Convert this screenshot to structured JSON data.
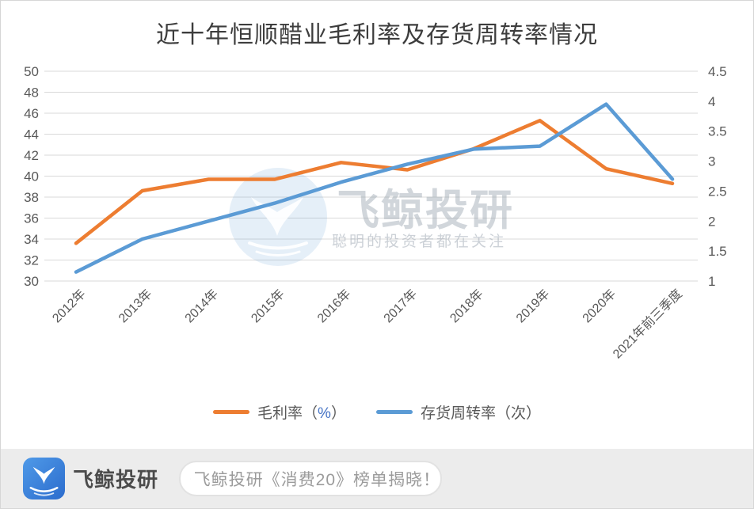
{
  "chart_data": {
    "type": "line",
    "title": "近十年恒顺醋业毛利率及存货周转率情况",
    "categories": [
      "2012年",
      "2013年",
      "2014年",
      "2015年",
      "2016年",
      "2017年",
      "2018年",
      "2019年",
      "2020年",
      "2021年前三季度"
    ],
    "series": [
      {
        "name": "毛利率（%）",
        "axis": "left",
        "color": "#ED7D31",
        "values": [
          33.6,
          38.6,
          39.7,
          39.7,
          41.3,
          40.6,
          42.6,
          45.3,
          40.7,
          39.3
        ]
      },
      {
        "name": "存货周转率（次）",
        "axis": "right",
        "color": "#5B9BD5",
        "values": [
          1.15,
          1.7,
          2.0,
          2.3,
          2.65,
          2.95,
          3.2,
          3.25,
          3.95,
          2.7
        ]
      }
    ],
    "left_axis": {
      "min": 30,
      "max": 50,
      "step": 2
    },
    "right_axis": {
      "min": 1,
      "max": 4.5,
      "step": 0.5
    },
    "grid": true,
    "legend_position": "bottom",
    "tick_color": "#595959",
    "gridline_color": "#D9D9D9",
    "percent_accent": "#4472C4"
  },
  "watermark": {
    "brand": "飞鲸投研",
    "tagline": "聪明的投资者都在关注"
  },
  "footer": {
    "brand": "飞鲸投研",
    "search_text": "飞鲸投研《消费20》榜单揭晓！"
  }
}
